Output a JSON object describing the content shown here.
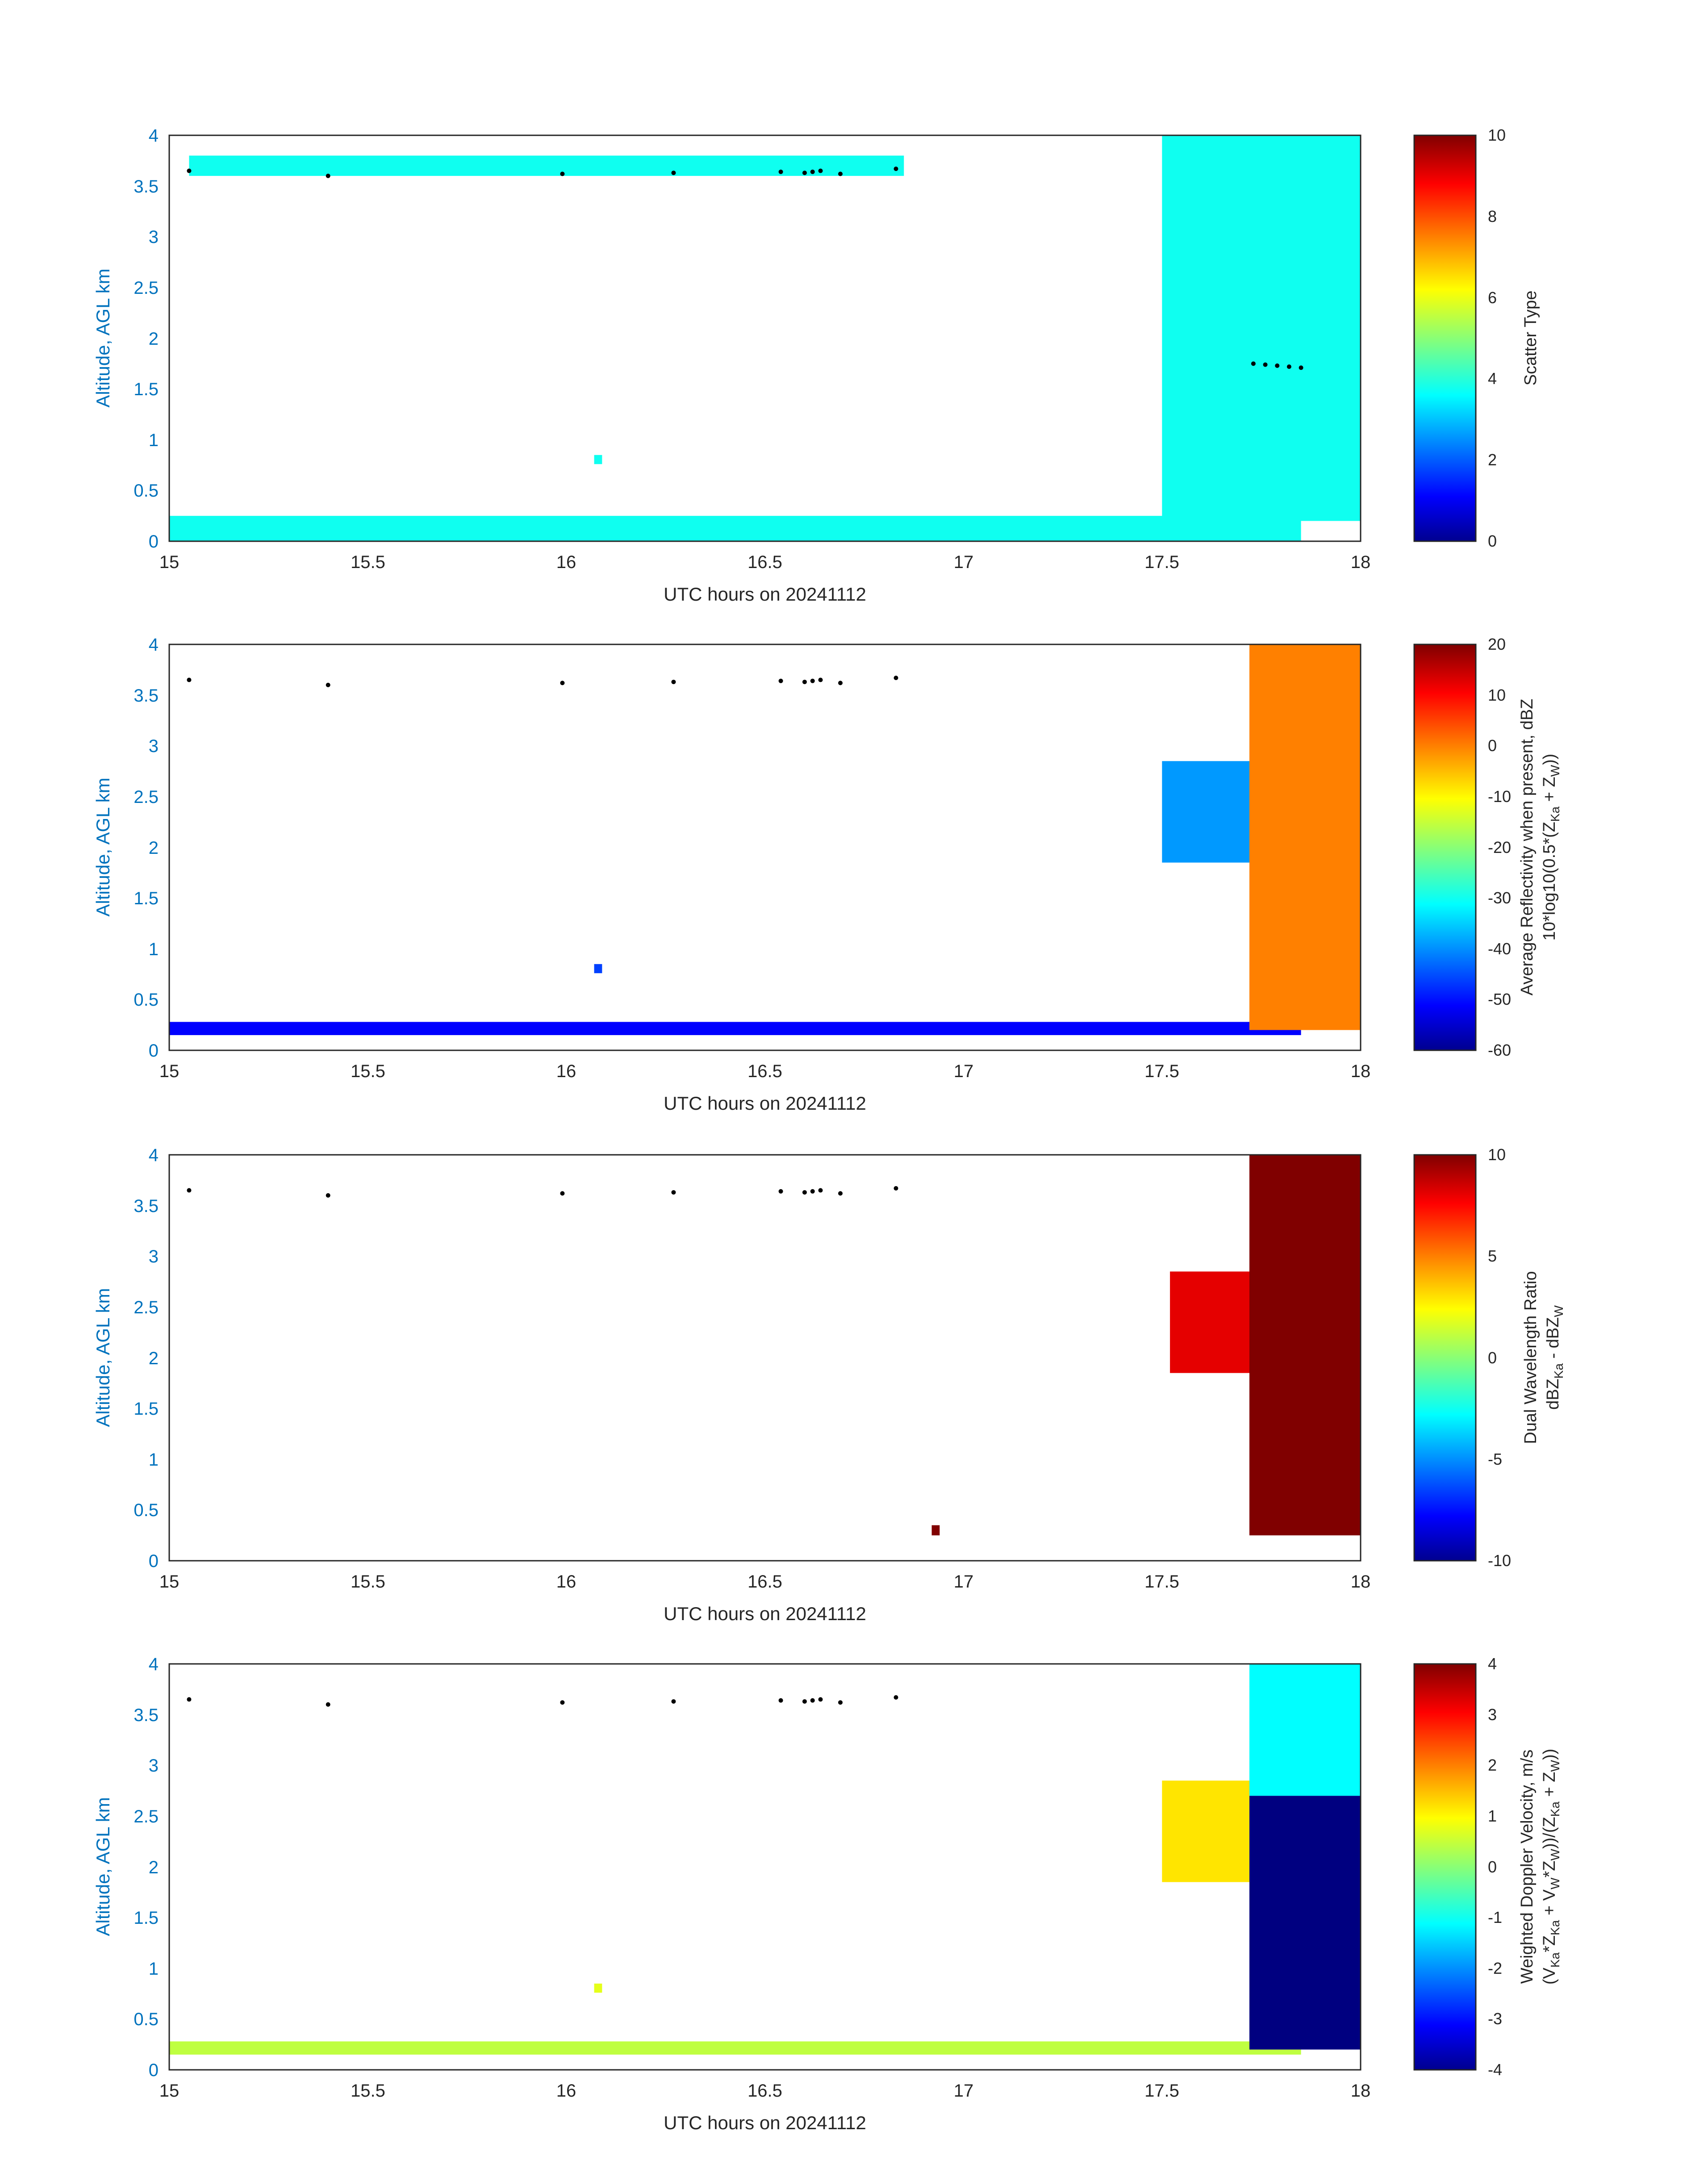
{
  "figure": {
    "xlabel": "UTC hours on 20241112",
    "ylabel": "Altitude, AGL km",
    "xticks": [
      "15",
      "15.5",
      "16",
      "16.5",
      "17",
      "17.5",
      "18"
    ],
    "yticks": [
      "0",
      "0.5",
      "1",
      "1.5",
      "2",
      "2.5",
      "3",
      "3.5",
      "4"
    ]
  },
  "chart_data": [
    {
      "type": "heatmap",
      "panel": 1,
      "xlabel": "UTC hours on 20241112",
      "ylabel": "Altitude, AGL km",
      "xlim": [
        15,
        18
      ],
      "ylim": [
        0,
        4
      ],
      "colormap": "jet",
      "colorbar": {
        "label": "Scatter Type",
        "clim": [
          0,
          10
        ],
        "ticks": [
          "0",
          "2",
          "4",
          "6",
          "8",
          "10"
        ]
      },
      "regions": [
        {
          "desc": "near-surface clutter layer",
          "x": [
            15.0,
            17.85
          ],
          "y": [
            0.0,
            0.25
          ],
          "value": 3.9
        },
        {
          "desc": "cloud top returns",
          "x": [
            15.05,
            16.85
          ],
          "y": [
            3.6,
            3.8
          ],
          "value": 3.9
        },
        {
          "desc": "isolated return",
          "x": [
            16.07,
            16.09
          ],
          "y": [
            0.76,
            0.85
          ],
          "value": 3.9
        },
        {
          "desc": "cloud mass",
          "x": [
            17.5,
            18.0
          ],
          "y": [
            0.2,
            4.0
          ],
          "value": 3.9
        }
      ],
      "series": [
        {
          "name": "cloud base",
          "x": [
            15.05,
            15.4,
            15.99,
            16.27,
            16.54,
            16.6,
            16.62,
            16.64,
            16.69,
            16.83
          ],
          "y": [
            3.65,
            3.6,
            3.62,
            3.63,
            3.64,
            3.63,
            3.64,
            3.65,
            3.62,
            3.67
          ]
        },
        {
          "name": "cloud base",
          "x": [
            17.73,
            17.76,
            17.79,
            17.82,
            17.85
          ],
          "y": [
            1.75,
            1.74,
            1.73,
            1.72,
            1.71
          ]
        }
      ]
    },
    {
      "type": "heatmap",
      "panel": 2,
      "xlabel": "UTC hours on 20241112",
      "ylabel": "Altitude, AGL km",
      "xlim": [
        15,
        18
      ],
      "ylim": [
        0,
        4
      ],
      "colormap": "jet",
      "colorbar": {
        "label_line1": "Average Reflectivity when present, dBZ",
        "label_line2": "10*log10(0.5*(Z",
        "label_sub1": "Ka",
        "label_mid": " + Z",
        "label_sub2": "W",
        "label_end": "))",
        "clim": [
          -60,
          20
        ],
        "ticks": [
          "-60",
          "-50",
          "-40",
          "-30",
          "-20",
          "-10",
          "0",
          "10",
          "20"
        ]
      },
      "regions": [
        {
          "desc": "near-surface blocks",
          "x": [
            15.0,
            17.85
          ],
          "y": [
            0.15,
            0.28
          ],
          "value": -50
        },
        {
          "desc": "isolated return",
          "x": [
            16.07,
            16.09
          ],
          "y": [
            0.76,
            0.85
          ],
          "value": -45
        },
        {
          "desc": "mid-level cloud",
          "x": [
            17.5,
            17.72
          ],
          "y": [
            1.85,
            2.85
          ],
          "value": -38
        },
        {
          "desc": "main cloud",
          "x": [
            17.72,
            18.0
          ],
          "y": [
            0.2,
            4.0
          ],
          "value": 0
        }
      ],
      "series": [
        {
          "name": "cloud base",
          "x": [
            15.05,
            15.4,
            15.99,
            16.27,
            16.54,
            16.6,
            16.62,
            16.64,
            16.69,
            16.83
          ],
          "y": [
            3.65,
            3.6,
            3.62,
            3.63,
            3.64,
            3.63,
            3.64,
            3.65,
            3.62,
            3.67
          ]
        }
      ]
    },
    {
      "type": "heatmap",
      "panel": 3,
      "xlabel": "UTC hours on 20241112",
      "ylabel": "Altitude, AGL km",
      "xlim": [
        15,
        18
      ],
      "ylim": [
        0,
        4
      ],
      "colormap": "jet",
      "colorbar": {
        "label_line1": "Dual Wavelength Ratio",
        "label_line2a": "dBZ",
        "label_sub1": "Ka",
        "label_line2b": " - dBZ",
        "label_sub2": "W",
        "clim": [
          -10,
          10
        ],
        "ticks": [
          "-10",
          "-5",
          "0",
          "5",
          "10"
        ]
      },
      "regions": [
        {
          "desc": "isolated return",
          "x": [
            16.92,
            16.94
          ],
          "y": [
            0.25,
            0.35
          ],
          "value": 10
        },
        {
          "desc": "mid-level cloud",
          "x": [
            17.52,
            17.72
          ],
          "y": [
            1.85,
            2.85
          ],
          "value": 8
        },
        {
          "desc": "main cloud",
          "x": [
            17.72,
            18.0
          ],
          "y": [
            0.25,
            4.0
          ],
          "value": 10
        }
      ],
      "series": [
        {
          "name": "cloud base",
          "x": [
            15.05,
            15.4,
            15.99,
            16.27,
            16.54,
            16.6,
            16.62,
            16.64,
            16.69,
            16.83
          ],
          "y": [
            3.65,
            3.6,
            3.62,
            3.63,
            3.64,
            3.63,
            3.64,
            3.65,
            3.62,
            3.67
          ]
        }
      ]
    },
    {
      "type": "heatmap",
      "panel": 4,
      "xlabel": "UTC hours on 20241112",
      "ylabel": "Altitude, AGL km",
      "xlim": [
        15,
        18
      ],
      "ylim": [
        0,
        4
      ],
      "colormap": "jet",
      "colorbar": {
        "label_line1": "Weighted Doppler Velocity, m/s",
        "label_line2": "(V",
        "clim": [
          -4,
          4
        ],
        "ticks": [
          "-4",
          "-3",
          "-2",
          "-1",
          "0",
          "1",
          "2",
          "3",
          "4"
        ]
      },
      "regions": [
        {
          "desc": "near-surface blocks",
          "x": [
            15.0,
            17.85
          ],
          "y": [
            0.15,
            0.28
          ],
          "value": 0.5
        },
        {
          "desc": "isolated return",
          "x": [
            16.07,
            16.09
          ],
          "y": [
            0.76,
            0.85
          ],
          "value": 0.8
        },
        {
          "desc": "mid-level cloud",
          "x": [
            17.5,
            17.72
          ],
          "y": [
            1.85,
            2.85
          ],
          "value": 1.2
        },
        {
          "desc": "upper cloud",
          "x": [
            17.72,
            18.0
          ],
          "y": [
            2.7,
            4.0
          ],
          "value": -1
        },
        {
          "desc": "lower cloud",
          "x": [
            17.72,
            18.0
          ],
          "y": [
            0.2,
            2.7
          ],
          "value": -4
        }
      ],
      "series": [
        {
          "name": "cloud base",
          "x": [
            15.05,
            15.4,
            15.99,
            16.27,
            16.54,
            16.6,
            16.62,
            16.64,
            16.69,
            16.83
          ],
          "y": [
            3.65,
            3.6,
            3.62,
            3.63,
            3.64,
            3.63,
            3.64,
            3.65,
            3.62,
            3.67
          ]
        }
      ]
    }
  ]
}
